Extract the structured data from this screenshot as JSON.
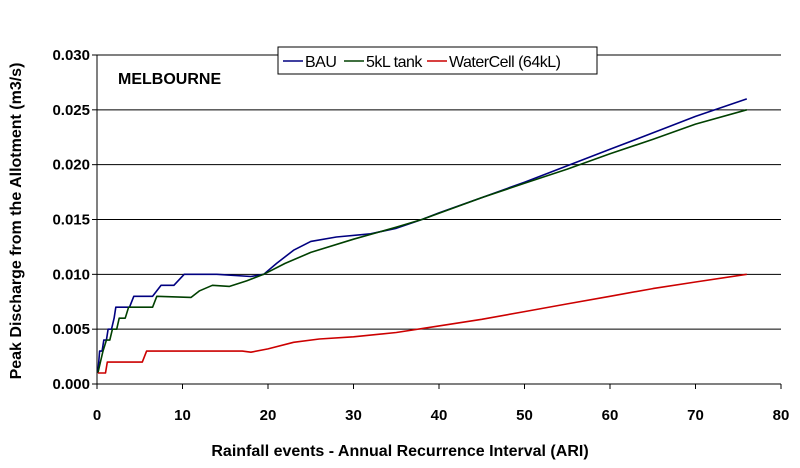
{
  "chart_data": {
    "type": "line",
    "title": "",
    "annotation": "MELBOURNE",
    "xlabel": "Rainfall events - Annual Recurrence Interval (ARI)",
    "ylabel": "Peak Discharge from the Allotment (m3/s)",
    "xlim": [
      0,
      80
    ],
    "ylim": [
      0,
      0.03
    ],
    "x_ticks": [
      "0",
      "10",
      "20",
      "30",
      "40",
      "50",
      "60",
      "70",
      "80"
    ],
    "y_ticks": [
      "0.000",
      "0.005",
      "0.010",
      "0.015",
      "0.020",
      "0.025",
      "0.030"
    ],
    "grid": "horizontal",
    "legend_position": "top-center",
    "series": [
      {
        "name": "BAU",
        "color": "#000080",
        "points": [
          [
            0.1,
            0.001
          ],
          [
            0.3,
            0.003
          ],
          [
            0.6,
            0.003
          ],
          [
            0.8,
            0.004
          ],
          [
            1.1,
            0.004
          ],
          [
            1.3,
            0.005
          ],
          [
            1.7,
            0.005
          ],
          [
            2.0,
            0.006
          ],
          [
            2.2,
            0.007
          ],
          [
            3.8,
            0.007
          ],
          [
            4.3,
            0.008
          ],
          [
            6.5,
            0.008
          ],
          [
            7.5,
            0.009
          ],
          [
            9.0,
            0.009
          ],
          [
            10.2,
            0.01
          ],
          [
            14.0,
            0.01
          ],
          [
            18.0,
            0.0098
          ],
          [
            19.5,
            0.01
          ],
          [
            21.0,
            0.011
          ],
          [
            23.0,
            0.0122
          ],
          [
            25.0,
            0.013
          ],
          [
            28.0,
            0.0134
          ],
          [
            32.0,
            0.0137
          ],
          [
            35.0,
            0.0142
          ],
          [
            38.0,
            0.015
          ],
          [
            40.0,
            0.0156
          ],
          [
            45.0,
            0.017
          ],
          [
            50.0,
            0.0184
          ],
          [
            55.0,
            0.0199
          ],
          [
            60.0,
            0.0214
          ],
          [
            65.0,
            0.0229
          ],
          [
            70.0,
            0.0244
          ],
          [
            76.0,
            0.026
          ]
        ]
      },
      {
        "name": "5kL tank",
        "color": "#004000",
        "points": [
          [
            0.1,
            0.001
          ],
          [
            0.4,
            0.002
          ],
          [
            0.7,
            0.003
          ],
          [
            1.1,
            0.004
          ],
          [
            1.5,
            0.004
          ],
          [
            1.8,
            0.005
          ],
          [
            2.3,
            0.005
          ],
          [
            2.6,
            0.006
          ],
          [
            3.3,
            0.006
          ],
          [
            3.7,
            0.007
          ],
          [
            6.5,
            0.007
          ],
          [
            7.0,
            0.008
          ],
          [
            11.0,
            0.0079
          ],
          [
            12.0,
            0.0085
          ],
          [
            13.5,
            0.009
          ],
          [
            15.5,
            0.0089
          ],
          [
            17.5,
            0.0094
          ],
          [
            19.5,
            0.01
          ],
          [
            22.0,
            0.011
          ],
          [
            25.0,
            0.012
          ],
          [
            30.0,
            0.0132
          ],
          [
            35.0,
            0.0143
          ],
          [
            38.0,
            0.015
          ],
          [
            45.0,
            0.017
          ],
          [
            50.0,
            0.0183
          ],
          [
            55.0,
            0.0196
          ],
          [
            60.0,
            0.021
          ],
          [
            65.0,
            0.0223
          ],
          [
            70.0,
            0.0237
          ],
          [
            76.0,
            0.025
          ]
        ]
      },
      {
        "name": "WaterCell (64kL)",
        "color": "#cc0000",
        "points": [
          [
            0.1,
            0.001
          ],
          [
            1.0,
            0.001
          ],
          [
            1.2,
            0.002
          ],
          [
            5.3,
            0.002
          ],
          [
            5.8,
            0.003
          ],
          [
            17.0,
            0.003
          ],
          [
            18.0,
            0.0029
          ],
          [
            20.0,
            0.0032
          ],
          [
            23.0,
            0.0038
          ],
          [
            26.0,
            0.0041
          ],
          [
            30.0,
            0.0043
          ],
          [
            35.0,
            0.0047
          ],
          [
            40.0,
            0.0053
          ],
          [
            45.0,
            0.0059
          ],
          [
            50.0,
            0.0066
          ],
          [
            55.0,
            0.0073
          ],
          [
            60.0,
            0.008
          ],
          [
            65.0,
            0.0087
          ],
          [
            70.0,
            0.0093
          ],
          [
            76.0,
            0.01
          ]
        ]
      }
    ]
  }
}
